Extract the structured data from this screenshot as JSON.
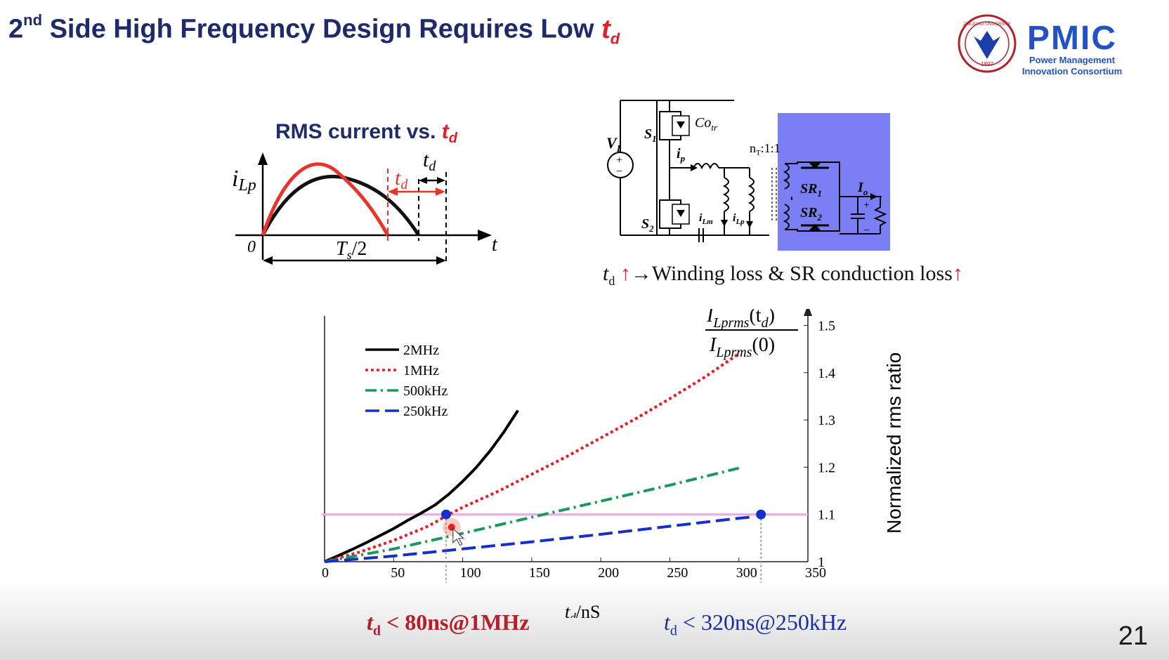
{
  "slide": {
    "title_prefix": "2",
    "title_sup": "nd",
    "title_main": " Side High Frequency Design Requires Low ",
    "title_td": "t",
    "title_td_sub": "d",
    "page_number": "21"
  },
  "logo": {
    "brand": "PMIC",
    "line1": "Power Management",
    "line2": "Innovation Consortium",
    "seal_text": "ZHEJIANG UNIVERSITY",
    "seal_year": "1897"
  },
  "waveform": {
    "title": "RMS current vs. ",
    "title_t": "t",
    "title_sub": "d",
    "ylabel_i": "i",
    "ylabel_sub": "Lp",
    "xlabel": "t",
    "origin": "0",
    "period_label": "T",
    "period_sub": "s",
    "period_tail": "/2",
    "td_label": "t",
    "td_sub": "d"
  },
  "circuit": {
    "vin": "V",
    "vin_sub": "I",
    "s1": "S",
    "s1_sub": "1",
    "s2": "S",
    "s2_sub": "2",
    "cotr": "Co",
    "cotr_sub": "tr",
    "ip": "i",
    "ip_sub": "p",
    "ilm": "i",
    "ilm_sub": "Lm",
    "ilp": "i",
    "ilp_sub": "Lp",
    "ratio": "n",
    "ratio_sub": "T",
    "ratio_tail": ":1:1",
    "sr1": "SR",
    "sr1_sub": "1",
    "sr2": "SR",
    "sr2_sub": "2",
    "io": "I",
    "io_sub": "o",
    "plus": "+",
    "minus": "−",
    "caption_t": "t",
    "caption_sub": "d",
    "caption_up": " ↑",
    "caption_mid": "→Winding loss & SR conduction loss",
    "caption_up2": "↑",
    "highlight_color": "#7b7ff5"
  },
  "chart_data": {
    "type": "line",
    "xlabel_main": "t",
    "xlabel_sub": "d",
    "xlabel_tail": "/nS",
    "ylabel": "Normalized rms ratio",
    "formula_num": "I",
    "formula_num_sub": "Lprms",
    "formula_num_arg": "(t",
    "formula_num_arg_sub": "d",
    "formula_num_close": ")",
    "formula_den": "I",
    "formula_den_sub": "Lprms",
    "formula_den_arg": "(0)",
    "xlim": [
      0,
      350
    ],
    "ylim": [
      1.0,
      1.52
    ],
    "xticks": [
      "0",
      "50",
      "100",
      "150",
      "200",
      "250",
      "300",
      "350"
    ],
    "xtick_values": [
      0,
      50,
      100,
      150,
      200,
      250,
      300,
      350
    ],
    "yticks": [
      "1",
      "1.1",
      "1.2",
      "1.3",
      "1.4",
      "1.5"
    ],
    "ytick_values": [
      1.0,
      1.1,
      1.2,
      1.3,
      1.4,
      1.5
    ],
    "reference_line": 1.1,
    "reference_color": "#f2a6ea",
    "series": [
      {
        "name": "2MHz",
        "color": "#000000",
        "dash": "solid",
        "x": [
          0,
          10,
          20,
          30,
          40,
          50,
          60,
          70,
          80,
          90,
          100,
          110,
          120,
          130,
          140
        ],
        "y": [
          1.0,
          1.013,
          1.026,
          1.04,
          1.055,
          1.07,
          1.087,
          1.103,
          1.12,
          1.143,
          1.17,
          1.2,
          1.235,
          1.275,
          1.32
        ]
      },
      {
        "name": "1MHz",
        "color": "#e31e24",
        "dash": "dot",
        "x": [
          0,
          25,
          50,
          75,
          90,
          100,
          125,
          150,
          175,
          200,
          225,
          250,
          275,
          300
        ],
        "y": [
          1.0,
          1.02,
          1.045,
          1.075,
          1.1,
          1.115,
          1.148,
          1.185,
          1.222,
          1.262,
          1.302,
          1.345,
          1.39,
          1.44
        ]
      },
      {
        "name": "500kHz",
        "color": "#1a9a5a",
        "dash": "dashdot",
        "x": [
          0,
          50,
          100,
          150,
          200,
          250,
          300
        ],
        "y": [
          1.0,
          1.027,
          1.06,
          1.094,
          1.128,
          1.162,
          1.198
        ]
      },
      {
        "name": "250kHz",
        "color": "#1530c8",
        "dash": "dash",
        "x": [
          0,
          50,
          100,
          150,
          200,
          250,
          300,
          310
        ],
        "y": [
          1.0,
          1.012,
          1.027,
          1.042,
          1.058,
          1.075,
          1.092,
          1.095
        ]
      }
    ],
    "markers": [
      {
        "x": 88,
        "y": 1.1,
        "color": "#1530c8"
      },
      {
        "x": 316,
        "y": 1.1,
        "color": "#1530c8"
      }
    ],
    "cursor": {
      "x": 92,
      "y": 1.073
    }
  },
  "annotations": {
    "red_t": "t",
    "red_sub": "d",
    "red_text": " < 80ns@1MHz",
    "blue_t": "t",
    "blue_sub": "d",
    "blue_text": " < 320ns@250kHz"
  }
}
